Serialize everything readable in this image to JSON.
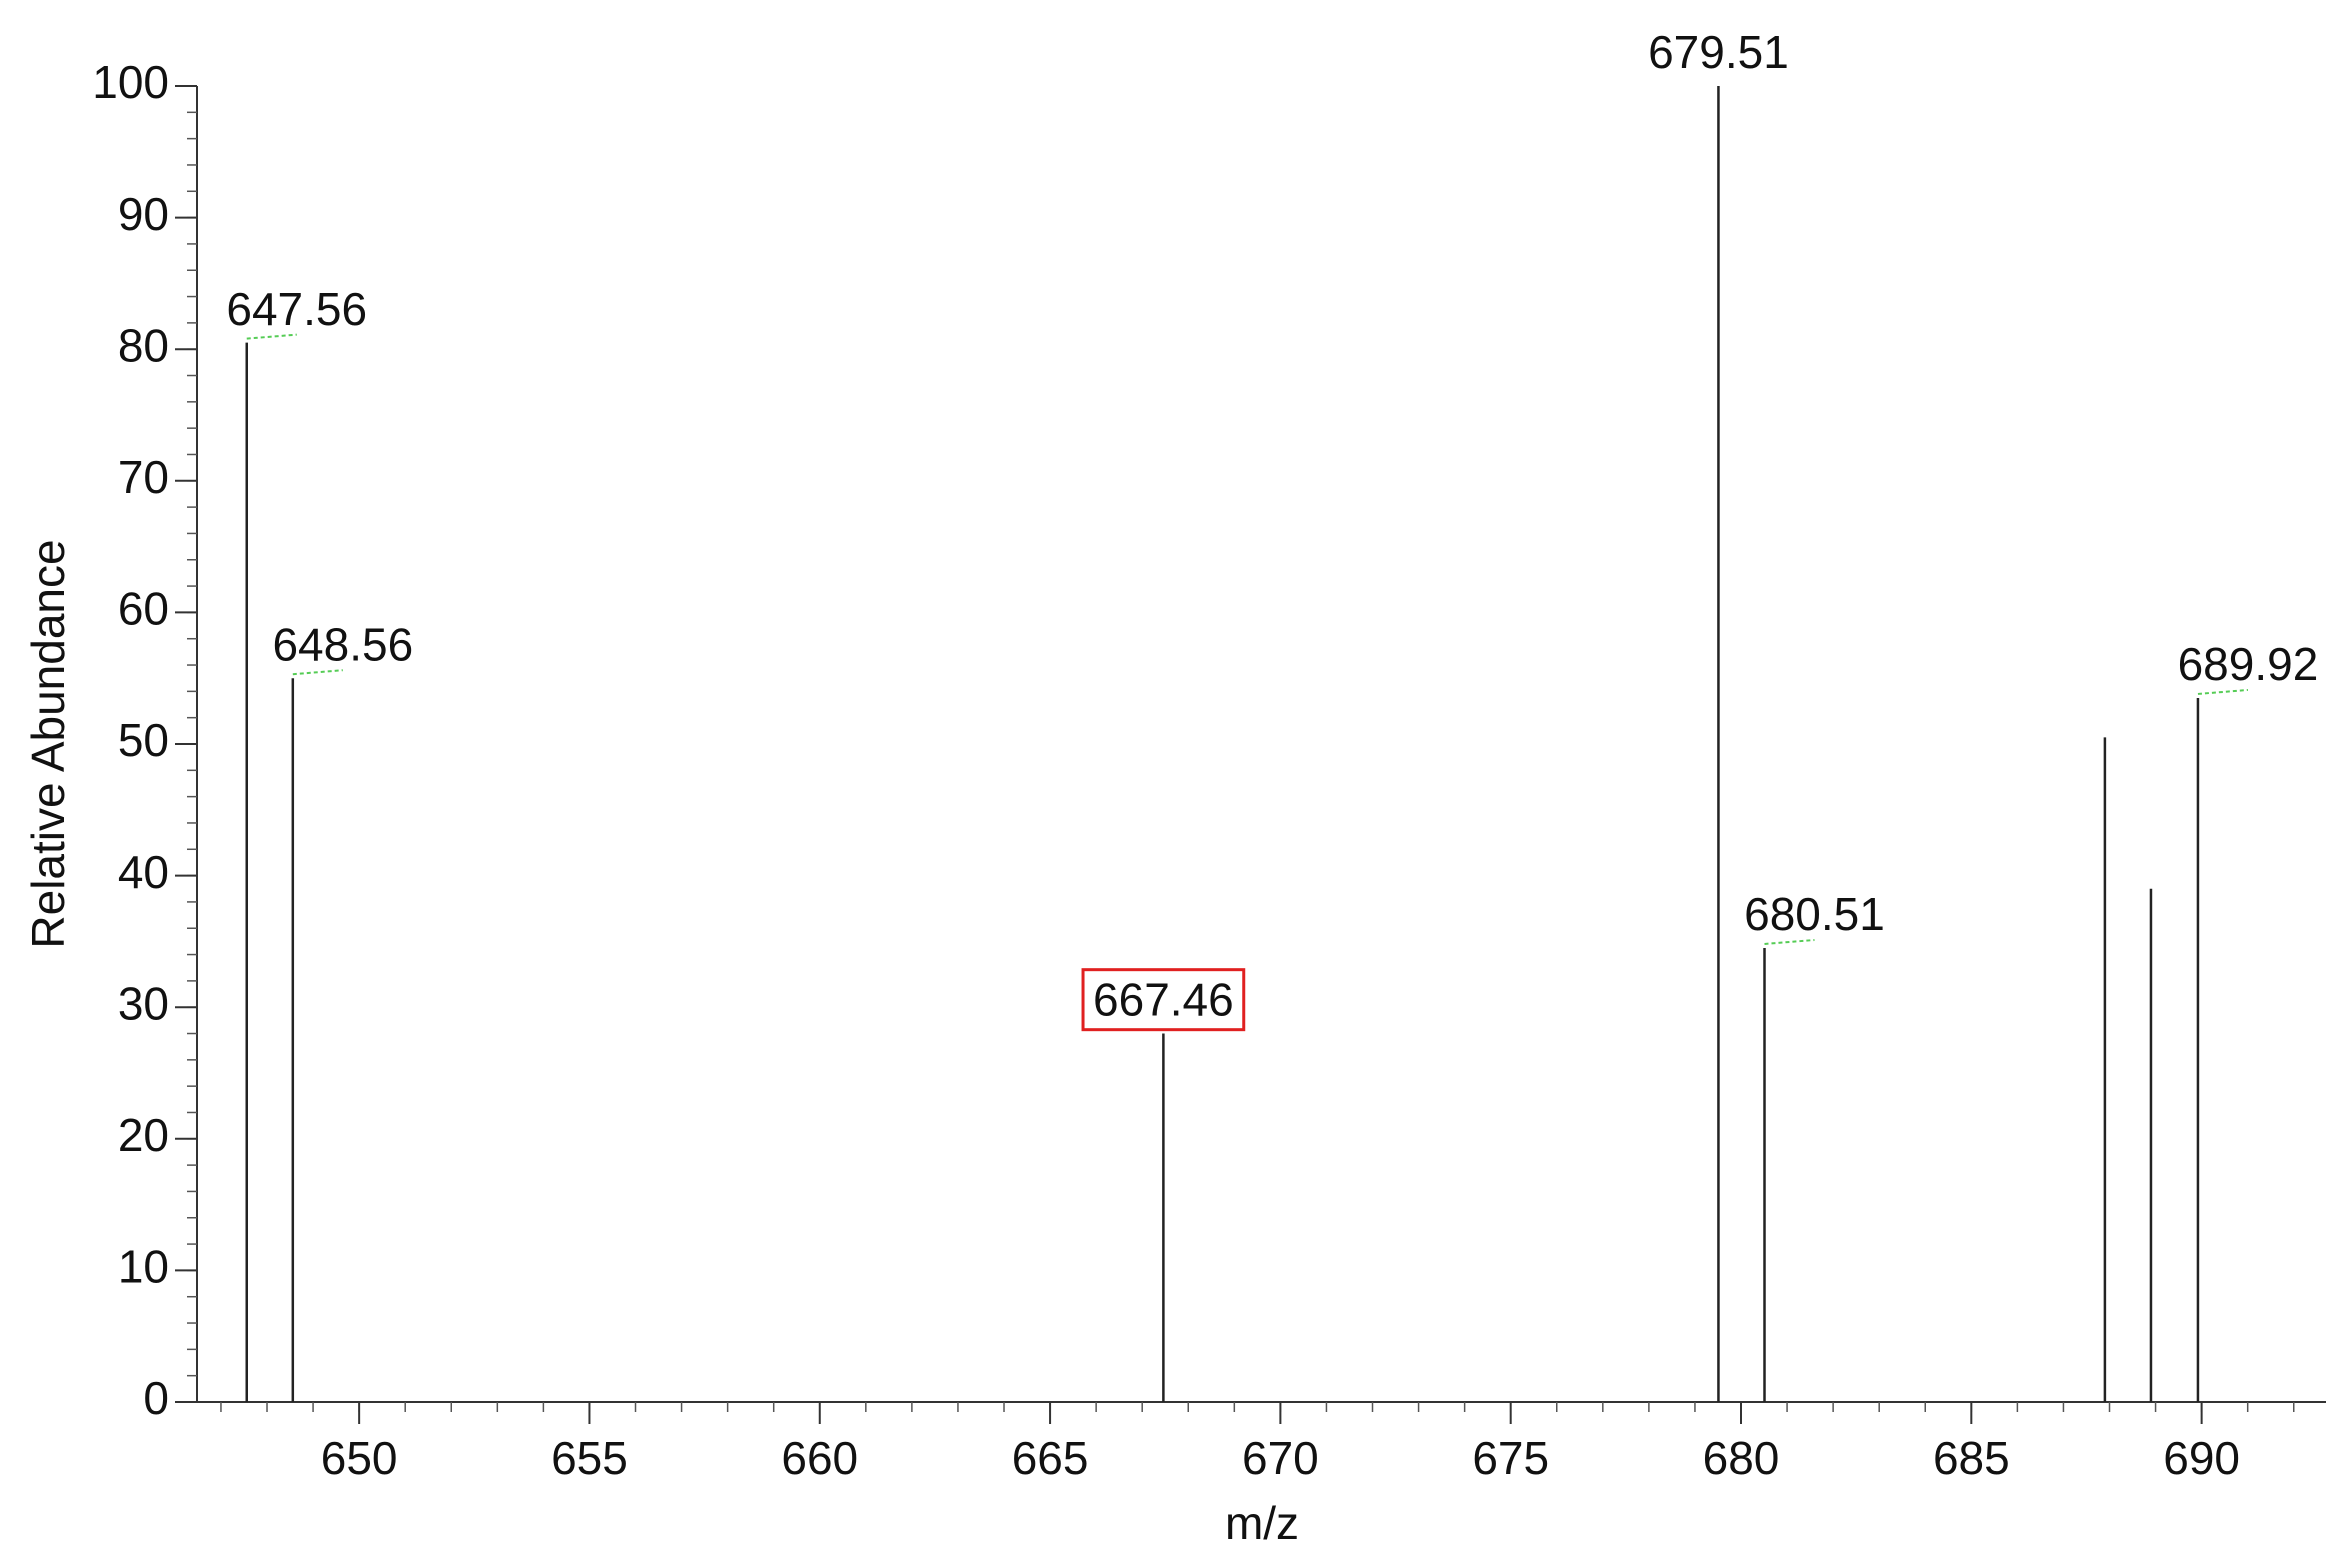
{
  "chart_data": {
    "type": "stem",
    "xlabel": "m/z",
    "ylabel": "Relative Abundance",
    "x": [
      647.56,
      648.56,
      667.46,
      679.51,
      680.51,
      687.9,
      688.9,
      689.92
    ],
    "values": [
      80.5,
      55,
      28,
      100,
      34.5,
      50.5,
      39,
      53.5
    ],
    "peak_labels": [
      "647.56",
      "648.56",
      "667.46",
      "679.51",
      "680.51",
      null,
      null,
      "689.92"
    ],
    "highlighted": [
      false,
      false,
      true,
      false,
      false,
      false,
      false,
      false
    ],
    "highlight_color": "#e02020",
    "color": "#222222",
    "xlim": [
      646.48,
      692.7
    ],
    "xticks": [
      650,
      655,
      660,
      665,
      670,
      675,
      680,
      685,
      690
    ],
    "x_minor_step": 1,
    "ylim": [
      0,
      100
    ],
    "yticks": [
      0,
      10,
      20,
      30,
      40,
      50,
      60,
      70,
      80,
      90,
      100
    ],
    "y_minor_step": 2
  }
}
